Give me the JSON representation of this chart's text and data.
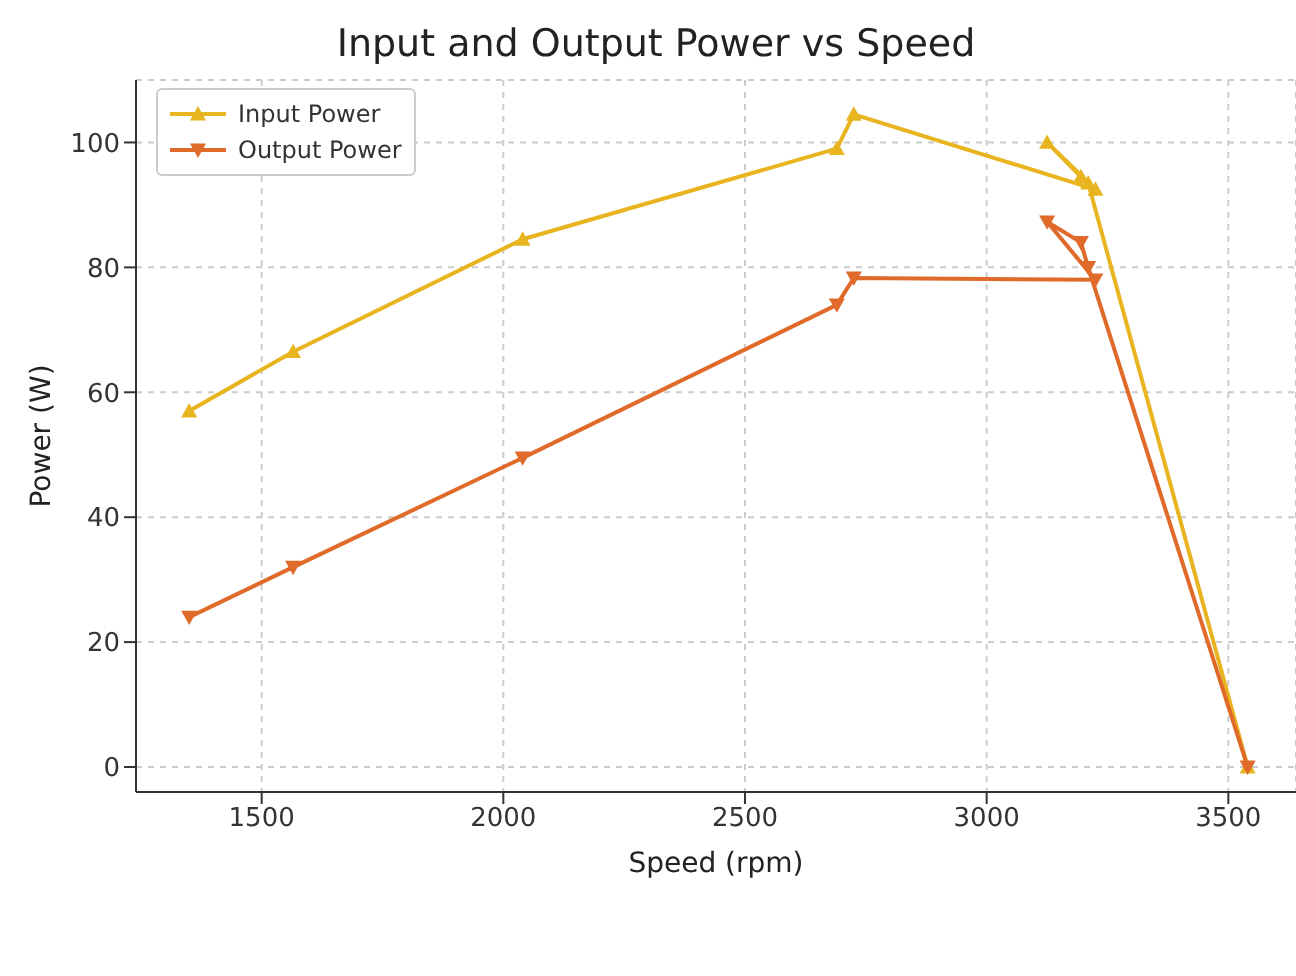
{
  "chart_data": {
    "type": "line",
    "title": "Input and Output Power vs Speed",
    "xlabel": "Speed (rpm)",
    "ylabel": "Power (W)",
    "x": [
      1350,
      1565,
      2040,
      2690,
      2725,
      3225,
      3125,
      3195,
      3210,
      3540
    ],
    "series": [
      {
        "name": "Input Power",
        "color": "#e8b420",
        "marker": "triangle",
        "values": [
          57,
          66.5,
          84.5,
          99,
          104.5,
          92.5,
          100,
          94.5,
          93.5,
          0
        ]
      },
      {
        "name": "Output Power",
        "color": "#e06a2a",
        "marker": "triangle-down",
        "values": [
          24,
          32,
          49.5,
          74,
          78.3,
          78,
          87.3,
          84,
          80,
          0
        ]
      }
    ],
    "xlim": [
      1240,
      3640
    ],
    "xticks": [
      1500,
      2000,
      2500,
      3000,
      3500
    ],
    "ylim": [
      -4,
      110
    ],
    "yticks": [
      0,
      20,
      40,
      60,
      80,
      100
    ],
    "grid": true,
    "legend": "top left",
    "line_style": "solid"
  }
}
